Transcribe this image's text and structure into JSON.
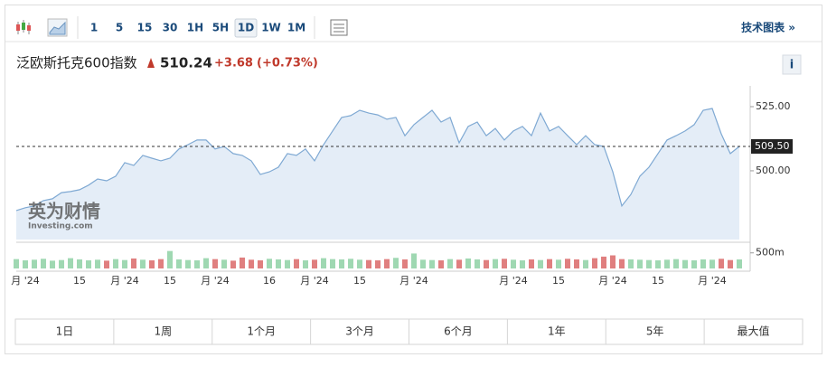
{
  "toolbar": {
    "intervals": [
      "1",
      "5",
      "15",
      "30",
      "1H",
      "5H",
      "1D",
      "1W",
      "1M"
    ],
    "active_interval": 6,
    "technical": "技术图表 »"
  },
  "header": {
    "name": "泛欧斯托克600指数",
    "price": "510.24",
    "change": "+3.68",
    "change_pct": "(+0.73%)",
    "info": "i"
  },
  "watermark": {
    "cn": "英为财情",
    "en": "Investing.com"
  },
  "chart_data": {
    "type": "area",
    "color": "#7fa9d3",
    "fill": "#e4edf7",
    "categories": [
      null,
      "月 '24",
      null,
      null,
      null,
      null,
      null,
      "15",
      null,
      null,
      null,
      null,
      "月 '24",
      null,
      null,
      null,
      null,
      "15",
      null,
      null,
      null,
      null,
      "月 '24",
      null,
      null,
      null,
      null,
      null,
      "16",
      null,
      null,
      null,
      null,
      "月 '24",
      null,
      null,
      null,
      null,
      "15",
      null,
      null,
      null,
      null,
      null,
      "月 '24",
      null,
      null,
      null,
      null,
      null,
      null,
      null,
      null,
      null,
      null,
      "月 '24",
      null,
      null,
      null,
      null,
      "15",
      null,
      null,
      null,
      null,
      null,
      "月 '24",
      null,
      null,
      null,
      null,
      "15",
      null,
      null,
      null,
      null,
      null,
      "月 '24",
      null,
      null,
      null
    ],
    "values": [
      484.5,
      485.6,
      486.3,
      488.4,
      489.1,
      491.5,
      491.9,
      492.6,
      494.4,
      496.8,
      496.1,
      497.9,
      503.2,
      502.1,
      506.0,
      504.9,
      503.9,
      504.9,
      508.5,
      510.2,
      512.0,
      512.0,
      508.5,
      509.5,
      506.7,
      506.0,
      503.9,
      498.6,
      499.6,
      501.4,
      506.7,
      506.0,
      508.5,
      503.9,
      510.2,
      515.5,
      520.8,
      521.5,
      523.6,
      522.5,
      521.8,
      520.1,
      520.8,
      513.7,
      518.0,
      520.8,
      523.6,
      519.0,
      520.8,
      510.9,
      517.3,
      519.0,
      513.7,
      516.5,
      512.0,
      515.5,
      517.3,
      513.7,
      522.5,
      515.5,
      517.3,
      513.7,
      510.2,
      513.7,
      510.2,
      509.5,
      499.6,
      486.3,
      490.8,
      497.9,
      501.4,
      506.7,
      512.0,
      513.7,
      515.5,
      518.0,
      523.6,
      524.3,
      514.4,
      506.7,
      509.5
    ],
    "ylim": [
      473.2,
      533.1
    ],
    "yticks": [
      {
        "value": 500,
        "label": "500.00"
      },
      {
        "value": 525,
        "label": "525.00"
      }
    ],
    "last": {
      "value": 509.5,
      "label": "509.50"
    },
    "volume": {
      "values": [
        300,
        260,
        280,
        310,
        250,
        270,
        330,
        290,
        260,
        280,
        250,
        300,
        270,
        320,
        280,
        260,
        300,
        560,
        290,
        270,
        260,
        330,
        300,
        280,
        250,
        350,
        280,
        260,
        310,
        290,
        270,
        300,
        260,
        280,
        330,
        300,
        290,
        310,
        280,
        270,
        260,
        300,
        340,
        290,
        480,
        280,
        270,
        260,
        300,
        280,
        320,
        290,
        270,
        300,
        310,
        280,
        260,
        290,
        270,
        300,
        280,
        310,
        290,
        270,
        330,
        380,
        420,
        300,
        290,
        280,
        270,
        260,
        280,
        300,
        270,
        260,
        290,
        280,
        310,
        270,
        290
      ],
      "ylim": [
        0,
        840
      ],
      "yticks": [
        {
          "value": 500,
          "label": "500m"
        }
      ],
      "up_color": "#9fd8b2",
      "down_color": "#e07f7f"
    }
  },
  "ranges": [
    "1日",
    "1周",
    "1个月",
    "3个月",
    "6个月",
    "1年",
    "5年",
    "最大值"
  ]
}
